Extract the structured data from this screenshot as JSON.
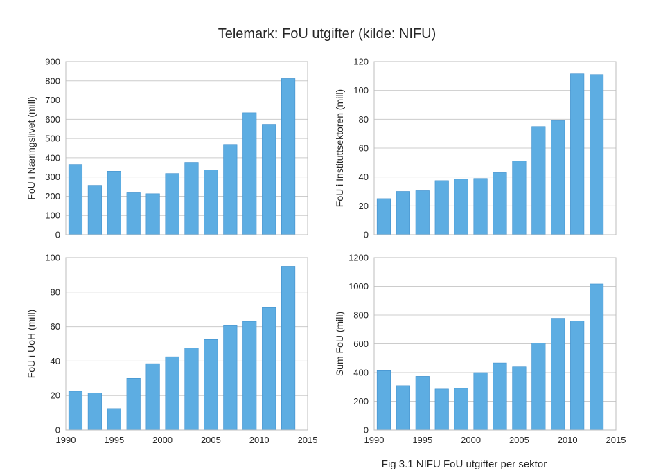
{
  "title": "Telemark: FoU utgifter (kilde: NIFU)",
  "caption": "Fig 3.1 NIFU FoU utgifter per sektor",
  "colors": {
    "bar": "#5DADE2",
    "bar_edge": "#3f8fcc",
    "grid": "#cccccc",
    "frame": "#bdbdbd",
    "text": "#262626"
  },
  "chart_data": [
    {
      "type": "bar",
      "ylabel": "FoU i Næringslivet (mill)",
      "x": [
        1991,
        1993,
        1995,
        1997,
        1999,
        2001,
        2003,
        2005,
        2007,
        2009,
        2011,
        2013
      ],
      "values": [
        365,
        257,
        330,
        218,
        213,
        318,
        376,
        336,
        469,
        634,
        574,
        812
      ],
      "ylim": [
        0,
        900
      ],
      "yticks": [
        0,
        100,
        200,
        300,
        400,
        500,
        600,
        700,
        800,
        900
      ],
      "xlim": [
        1990,
        2015
      ],
      "xticks": [],
      "grid": true
    },
    {
      "type": "bar",
      "ylabel": "FoU i Instituttsektoren (mill)",
      "x": [
        1991,
        1993,
        1995,
        1997,
        1999,
        2001,
        2003,
        2005,
        2007,
        2009,
        2011,
        2013
      ],
      "values": [
        25,
        30,
        30.5,
        37.5,
        38.5,
        39,
        43,
        51,
        75,
        79,
        111.5,
        111
      ],
      "ylim": [
        0,
        120
      ],
      "yticks": [
        0,
        20,
        40,
        60,
        80,
        100,
        120
      ],
      "xlim": [
        1990,
        2015
      ],
      "xticks": [],
      "grid": true
    },
    {
      "type": "bar",
      "ylabel": "FoU i UoH (mill)",
      "x": [
        1991,
        1993,
        1995,
        1997,
        1999,
        2001,
        2003,
        2005,
        2007,
        2009,
        2011,
        2013
      ],
      "values": [
        22.5,
        21.5,
        12.5,
        30,
        38.5,
        42.5,
        47.5,
        52.5,
        60.5,
        63,
        71,
        95
      ],
      "ylim": [
        0,
        100
      ],
      "yticks": [
        0,
        20,
        40,
        60,
        80,
        100
      ],
      "xlim": [
        1990,
        2015
      ],
      "xticks": [
        1990,
        1995,
        2000,
        2005,
        2010,
        2015
      ],
      "grid": true
    },
    {
      "type": "bar",
      "ylabel": "Sum FoU (mill)",
      "x": [
        1991,
        1993,
        1995,
        1997,
        1999,
        2001,
        2003,
        2005,
        2007,
        2009,
        2011,
        2013
      ],
      "values": [
        413,
        309,
        374,
        285,
        290,
        400,
        467,
        440,
        605,
        778,
        760,
        1017
      ],
      "ylim": [
        0,
        1200
      ],
      "yticks": [
        0,
        200,
        400,
        600,
        800,
        1000,
        1200
      ],
      "xlim": [
        1990,
        2015
      ],
      "xticks": [
        1990,
        1995,
        2000,
        2005,
        2010,
        2015
      ],
      "grid": true
    }
  ]
}
